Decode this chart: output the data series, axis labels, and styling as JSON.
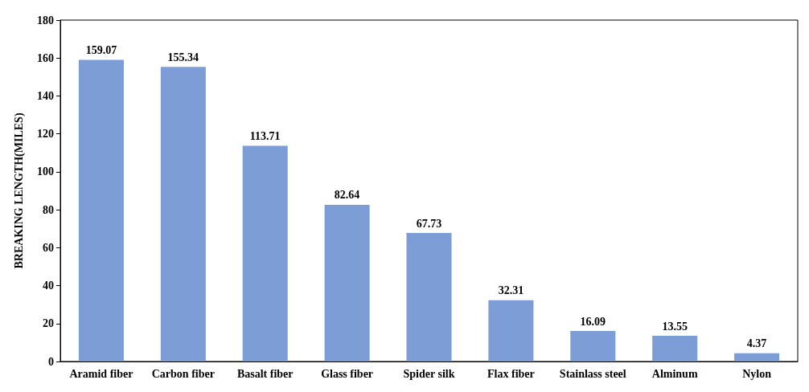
{
  "chart_data": {
    "type": "bar",
    "ylabel": "BREAKING LENGTH(MILES)",
    "categories": [
      "Aramid fiber",
      "Carbon fiber",
      "Basalt fiber",
      "Glass fiber",
      "Spider silk",
      "Flax fiber",
      "Stainlass steel",
      "Alminum",
      "Nylon"
    ],
    "values": [
      159.07,
      155.34,
      113.71,
      82.64,
      67.73,
      32.31,
      16.09,
      13.55,
      4.37
    ],
    "color": "#7c9dd5",
    "ylim": [
      0,
      180
    ],
    "yticks": [
      0,
      20,
      40,
      60,
      80,
      100,
      120,
      140,
      160,
      180
    ],
    "grid": false,
    "data_labels": true
  }
}
